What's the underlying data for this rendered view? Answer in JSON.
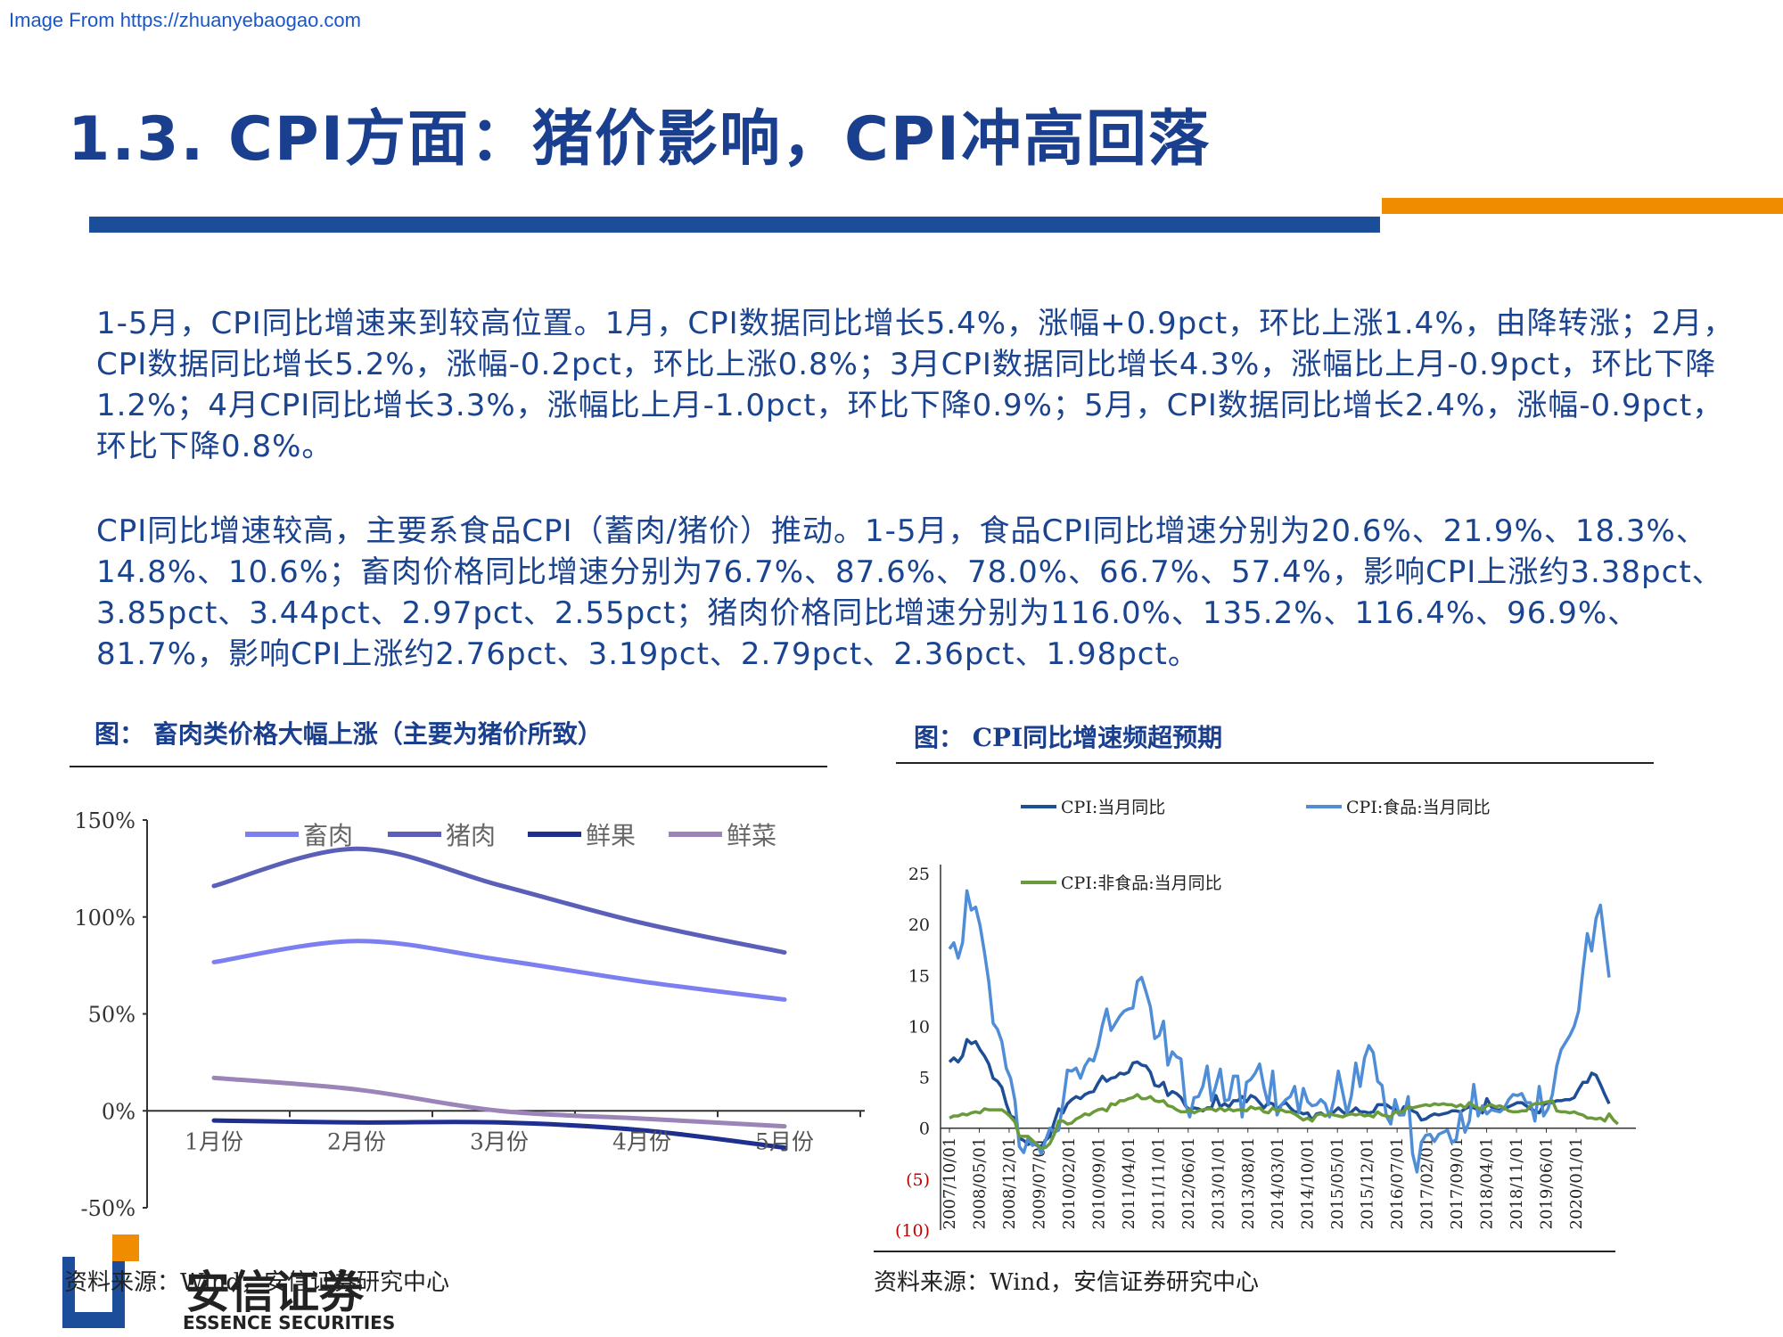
{
  "watermark": "Image From https://zhuanyebaogao.com",
  "title": "1.3. CPI方面：猪价影响，CPI冲高回落",
  "paragraphs": [
    "1-5月，CPI同比增速来到较高位置。1月，CPI数据同比增长5.4%，涨幅+0.9pct，环比上涨1.4%，由降转涨；2月，CPI数据同比增长5.2%，涨幅-0.2pct，环比上涨0.8%；3月CPI数据同比增长4.3%，涨幅比上月-0.9pct，环比下降1.2%；4月CPI同比增长3.3%，涨幅比上月-1.0pct，环比下降0.9%；5月，CPI数据同比增长2.4%，涨幅-0.9pct，环比下降0.8%。",
    "CPI同比增速较高，主要系食品CPI（蓄肉/猪价）推动。1-5月，食品CPI同比增速分别为20.6%、21.9%、18.3%、14.8%、10.6%；畜肉价格同比增速分别为76.7%、87.6%、78.0%、66.7%、57.4%，影响CPI上涨约3.38pct、3.85pct、3.44pct、2.97pct、2.55pct；猪肉价格同比增速分别为116.0%、135.2%、116.4%、96.9%、81.7%，影响CPI上涨约2.76pct、3.19pct、2.79pct、2.36pct、1.98pct。"
  ],
  "figure_left": {
    "title": "图：  畜肉类价格大幅上涨（主要为猪价所致）",
    "source": "资料来源：Wind，安信证券研究中心"
  },
  "figure_right": {
    "title": "图：  CPI同比增速频超预期",
    "source": "资料来源：Wind，安信证券研究中心"
  },
  "logo": {
    "cn": "安信证券",
    "en": "ESSENCE SECURITIES"
  },
  "chart_data": [
    {
      "type": "line",
      "categories": [
        "1月份",
        "2月份",
        "3月份",
        "4月份",
        "5月份"
      ],
      "y_ticks": [
        "150%",
        "100%",
        "50%",
        "0%",
        "-50%"
      ],
      "ylim": [
        -50,
        150
      ],
      "legend_position": "top",
      "series": [
        {
          "name": "畜肉",
          "color": "#7b7ff0",
          "values": [
            76.7,
            87.6,
            78.0,
            66.7,
            57.4
          ]
        },
        {
          "name": "猪肉",
          "color": "#5b5fb8",
          "values": [
            116.0,
            135.2,
            116.4,
            96.9,
            81.7
          ]
        },
        {
          "name": "鲜果",
          "color": "#1f2f8f",
          "values": [
            -5.0,
            -6.0,
            -6.0,
            -10.0,
            -19.0
          ]
        },
        {
          "name": "鲜菜",
          "color": "#9b84b8",
          "values": [
            17.0,
            11.0,
            0.0,
            -4.0,
            -8.0
          ]
        }
      ]
    },
    {
      "type": "line",
      "ylim": [
        -10,
        25
      ],
      "y_ticks": [
        "25",
        "20",
        "15",
        "10",
        "5",
        "0",
        "(5)",
        "(10)"
      ],
      "x_ticks": [
        "2007/10/01",
        "2008/05/01",
        "2008/12/01",
        "2009/07/01",
        "2010/02/01",
        "2010/09/01",
        "2011/04/01",
        "2011/11/01",
        "2012/06/01",
        "2013/01/01",
        "2013/08/01",
        "2014/03/01",
        "2014/10/01",
        "2015/05/01",
        "2015/12/01",
        "2016/07/01",
        "2017/02/01",
        "2017/09/01",
        "2018/04/01",
        "2018/11/01",
        "2019/06/01",
        "2020/01/01"
      ],
      "legend_position": "top",
      "series": [
        {
          "name": "CPI:当月同比",
          "color": "#1e4e96",
          "values": [
            6.5,
            6.9,
            6.5,
            7.1,
            8.7,
            8.3,
            8.5,
            7.7,
            7.1,
            6.3,
            4.9,
            4.6,
            4.0,
            2.4,
            1.2,
            1.0,
            -1.0,
            -1.2,
            -1.6,
            -1.4,
            -1.7,
            -1.8,
            -1.2,
            -0.8,
            0.6,
            1.9,
            1.5,
            2.4,
            2.8,
            3.1,
            2.9,
            3.3,
            3.5,
            3.6,
            4.4,
            5.1,
            4.6,
            4.9,
            5.0,
            5.4,
            5.3,
            5.5,
            6.4,
            6.5,
            6.2,
            6.1,
            5.5,
            4.2,
            4.1,
            4.5,
            3.2,
            3.6,
            3.4,
            3.0,
            2.2,
            1.8,
            2.0,
            1.9,
            1.7,
            2.0,
            2.0,
            3.2,
            2.1,
            2.4,
            2.1,
            2.7,
            2.7,
            3.1,
            2.6,
            3.2,
            3.0,
            2.5,
            2.0,
            2.5,
            2.4,
            1.8,
            2.3,
            2.5,
            2.0,
            1.6,
            1.6,
            1.4,
            1.5,
            0.8,
            1.4,
            1.5,
            1.2,
            1.4,
            1.6,
            2.0,
            1.6,
            1.3,
            1.6,
            2.0,
            1.6,
            1.6,
            1.5,
            1.6,
            2.3,
            2.3,
            2.3,
            2.0,
            1.9,
            1.3,
            2.1,
            2.1,
            1.7,
            1.5,
            0.8,
            0.9,
            1.2,
            1.4,
            1.3,
            1.4,
            1.5,
            1.7,
            1.7,
            1.6,
            1.9,
            2.1,
            2.0,
            1.8,
            1.5,
            2.9,
            2.1,
            1.8,
            1.8,
            1.9,
            2.1,
            2.3,
            2.5,
            2.5,
            2.2,
            1.9,
            1.7,
            1.5,
            2.3,
            2.5,
            2.5,
            2.7,
            2.7,
            2.8,
            2.8,
            3.0,
            3.8,
            4.5,
            4.5,
            5.4,
            5.2,
            4.3,
            3.3,
            2.4
          ]
        },
        {
          "name": "CPI:食品:当月同比",
          "color": "#4f8dd6",
          "values": [
            17.6,
            18.2,
            16.7,
            18.2,
            23.3,
            21.4,
            21.7,
            19.9,
            17.3,
            14.4,
            10.3,
            9.7,
            8.5,
            5.9,
            4.9,
            2.7,
            -1.8,
            -2.4,
            -1.0,
            -1.7,
            -1.5,
            -2.5,
            -1.2,
            0.0,
            -0.4,
            -0.2,
            2.5,
            5.7,
            5.6,
            5.9,
            4.9,
            6.1,
            6.8,
            6.6,
            8.0,
            10.1,
            11.7,
            9.6,
            10.3,
            11.0,
            11.5,
            11.7,
            11.8,
            14.4,
            14.8,
            13.4,
            11.9,
            8.8,
            9.1,
            10.5,
            6.2,
            7.5,
            7.0,
            6.8,
            2.4,
            1.1,
            3.0,
            3.1,
            4.1,
            6.1,
            2.7,
            4.2,
            5.8,
            2.7,
            2.8,
            5.1,
            5.1,
            1.1,
            4.5,
            4.8,
            5.4,
            6.3,
            4.0,
            2.3,
            5.6,
            1.3,
            2.3,
            2.8,
            3.1,
            4.1,
            1.5,
            3.9,
            2.6,
            2.2,
            2.3,
            2.8,
            2.4,
            1.1,
            2.8,
            5.6,
            3.5,
            1.4,
            3.2,
            6.4,
            4.1,
            6.9,
            8.1,
            7.4,
            4.6,
            4.2,
            1.2,
            0.4,
            2.8,
            1.3,
            1.3,
            3.1,
            -2.5,
            -4.3,
            -1.4,
            -0.7,
            -0.6,
            -1.3,
            -0.6,
            -0.4,
            -0.2,
            -1.4,
            -1.1,
            1.6,
            -0.4,
            0.7,
            4.3,
            1.2,
            2.2,
            1.4,
            1.8,
            1.7,
            1.6,
            2.0,
            2.8,
            3.3,
            3.2,
            3.4,
            2.5,
            2.5,
            0.7,
            4.1,
            1.2,
            1.9,
            3.3,
            6.1,
            7.7,
            8.4,
            9.1,
            10.0,
            11.5,
            15.5,
            19.1,
            17.4,
            20.6,
            21.9,
            18.3,
            14.8
          ]
        },
        {
          "name": "CPI:非食品:当月同比",
          "color": "#6a9a3a",
          "values": [
            1.0,
            1.2,
            1.2,
            1.4,
            1.3,
            1.5,
            1.6,
            1.5,
            1.9,
            1.8,
            1.8,
            1.8,
            1.8,
            1.5,
            1.1,
            0.6,
            -0.8,
            -0.8,
            -0.8,
            -1.2,
            -1.6,
            -2.0,
            -1.9,
            -1.5,
            -0.6,
            0.7,
            0.7,
            0.4,
            0.5,
            0.9,
            1.1,
            1.4,
            1.3,
            1.6,
            1.8,
            1.9,
            1.7,
            2.4,
            2.3,
            2.7,
            2.7,
            2.9,
            3.0,
            3.3,
            2.9,
            2.9,
            3.1,
            2.7,
            2.6,
            2.7,
            2.2,
            2.1,
            1.8,
            1.6,
            1.6,
            1.8,
            1.5,
            1.7,
            1.8,
            1.9,
            1.9,
            1.7,
            2.0,
            1.7,
            1.9,
            1.7,
            1.8,
            1.8,
            1.7,
            2.1,
            1.9,
            2.0,
            1.6,
            1.5,
            2.0,
            1.7,
            1.8,
            1.6,
            1.6,
            1.4,
            1.1,
            0.8,
            1.0,
            0.7,
            1.3,
            1.4,
            1.2,
            1.4,
            1.3,
            1.2,
            1.1,
            1.3,
            1.4,
            1.3,
            1.4,
            1.2,
            1.3,
            1.1,
            1.6,
            1.3,
            1.2,
            1.1,
            1.6,
            1.5,
            1.7,
            2.1,
            2.0,
            2.1,
            2.2,
            2.3,
            2.2,
            2.4,
            2.3,
            2.4,
            2.3,
            2.3,
            2.1,
            2.3,
            2.0,
            2.5,
            2.2,
            2.0,
            1.8,
            2.2,
            2.3,
            2.1,
            2.2,
            2.0,
            1.7,
            1.6,
            1.6,
            1.7,
            1.7,
            2.2,
            2.4,
            2.4,
            2.5,
            2.6,
            2.7,
            1.7,
            1.6,
            1.6,
            1.5,
            1.6,
            1.4,
            1.3,
            1.0,
            1.0,
            0.9,
            1.0,
            0.7,
            1.4,
            0.8,
            0.4
          ]
        }
      ]
    }
  ]
}
